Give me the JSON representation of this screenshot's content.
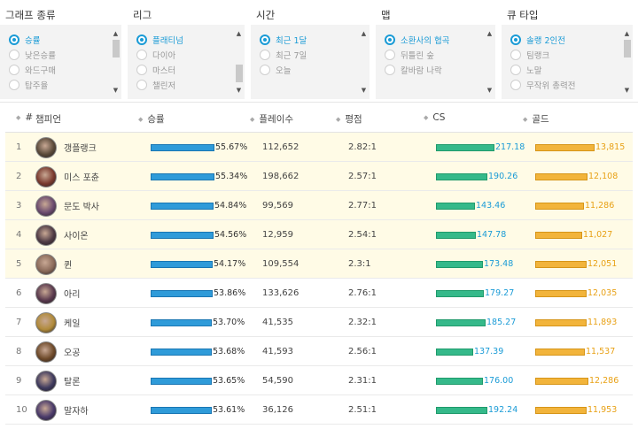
{
  "filters": [
    {
      "header": "그래프 종류",
      "options": [
        "승률",
        "낮은승률",
        "와드구매",
        "탑주율"
      ],
      "selected": 0,
      "thumb": "top"
    },
    {
      "header": "리그",
      "options": [
        "플래티넘",
        "다이아",
        "마스터",
        "챌린저"
      ],
      "selected": 0,
      "thumb": "bottom"
    },
    {
      "header": "시간",
      "options": [
        "최근 1달",
        "최근 7일",
        "오늘"
      ],
      "selected": 0,
      "thumb": "none"
    },
    {
      "header": "맵",
      "options": [
        "소환사의 협곡",
        "뒤틀린 숲",
        "칼바람 나락"
      ],
      "selected": 0,
      "thumb": "none"
    },
    {
      "header": "큐 타입",
      "options": [
        "솔랭 2인전",
        "팀랭크",
        "노말",
        "무작위 총력전"
      ],
      "selected": 0,
      "thumb": "top"
    }
  ],
  "table": {
    "headers": {
      "rank": "#",
      "champion": "챔피언",
      "winrate": "승률",
      "plays": "플레이수",
      "kda": "평점",
      "cs": "CS",
      "gold": "골드"
    },
    "rows": [
      {
        "rank": "1",
        "champion": "갱플랭크",
        "winrate": "55.67%",
        "winrate_pct": 55.67,
        "plays": "112,652",
        "kda": "2.82:1",
        "cs": "217.18",
        "cs_value": 217.18,
        "gold": "13,815",
        "gold_value": 13815,
        "highlight": true,
        "avatar_color": "#5a4a3a"
      },
      {
        "rank": "2",
        "champion": "미스 포츈",
        "winrate": "55.34%",
        "winrate_pct": 55.34,
        "plays": "198,662",
        "kda": "2.57:1",
        "cs": "190.26",
        "cs_value": 190.26,
        "gold": "12,108",
        "gold_value": 12108,
        "highlight": true,
        "avatar_color": "#7a3a2e"
      },
      {
        "rank": "3",
        "champion": "문도 박사",
        "winrate": "54.84%",
        "winrate_pct": 54.84,
        "plays": "99,569",
        "kda": "2.77:1",
        "cs": "143.46",
        "cs_value": 143.46,
        "gold": "11,286",
        "gold_value": 11286,
        "highlight": true,
        "avatar_color": "#6a4a6e"
      },
      {
        "rank": "4",
        "champion": "사이온",
        "winrate": "54.56%",
        "winrate_pct": 54.56,
        "plays": "12,959",
        "kda": "2.54:1",
        "cs": "147.78",
        "cs_value": 147.78,
        "gold": "11,027",
        "gold_value": 11027,
        "highlight": true,
        "avatar_color": "#4e3a44"
      },
      {
        "rank": "5",
        "champion": "퀸",
        "winrate": "54.17%",
        "winrate_pct": 54.17,
        "plays": "109,554",
        "kda": "2.3:1",
        "cs": "173.48",
        "cs_value": 173.48,
        "gold": "12,051",
        "gold_value": 12051,
        "highlight": true,
        "avatar_color": "#8a6a5a"
      },
      {
        "rank": "6",
        "champion": "아리",
        "winrate": "53.86%",
        "winrate_pct": 53.86,
        "plays": "133,626",
        "kda": "2.76:1",
        "cs": "179.27",
        "cs_value": 179.27,
        "gold": "12,035",
        "gold_value": 12035,
        "highlight": false,
        "avatar_color": "#5a3a4e"
      },
      {
        "rank": "7",
        "champion": "케일",
        "winrate": "53.70%",
        "winrate_pct": 53.7,
        "plays": "41,535",
        "kda": "2.32:1",
        "cs": "185.27",
        "cs_value": 185.27,
        "gold": "11,893",
        "gold_value": 11893,
        "highlight": false,
        "avatar_color": "#b08a3a"
      },
      {
        "rank": "8",
        "champion": "오공",
        "winrate": "53.68%",
        "winrate_pct": 53.68,
        "plays": "41,593",
        "kda": "2.56:1",
        "cs": "137.39",
        "cs_value": 137.39,
        "gold": "11,537",
        "gold_value": 11537,
        "highlight": false,
        "avatar_color": "#6e4a2a"
      },
      {
        "rank": "9",
        "champion": "탈론",
        "winrate": "53.65%",
        "winrate_pct": 53.65,
        "plays": "54,590",
        "kda": "2.31:1",
        "cs": "176.00",
        "cs_value": 176.0,
        "gold": "12,286",
        "gold_value": 12286,
        "highlight": false,
        "avatar_color": "#3e3a5e"
      },
      {
        "rank": "10",
        "champion": "말자하",
        "winrate": "53.61%",
        "winrate_pct": 53.61,
        "plays": "36,126",
        "kda": "2.51:1",
        "cs": "192.24",
        "cs_value": 192.24,
        "gold": "11,953",
        "gold_value": 11953,
        "highlight": false,
        "avatar_color": "#4a3a6a"
      }
    ]
  },
  "colors": {
    "accent": "#1a9bd6",
    "winrate_bar": "#2f9bd9",
    "cs_bar": "#35b98a",
    "gold_bar": "#f2b43b",
    "highlight_row": "#fffbe6"
  }
}
